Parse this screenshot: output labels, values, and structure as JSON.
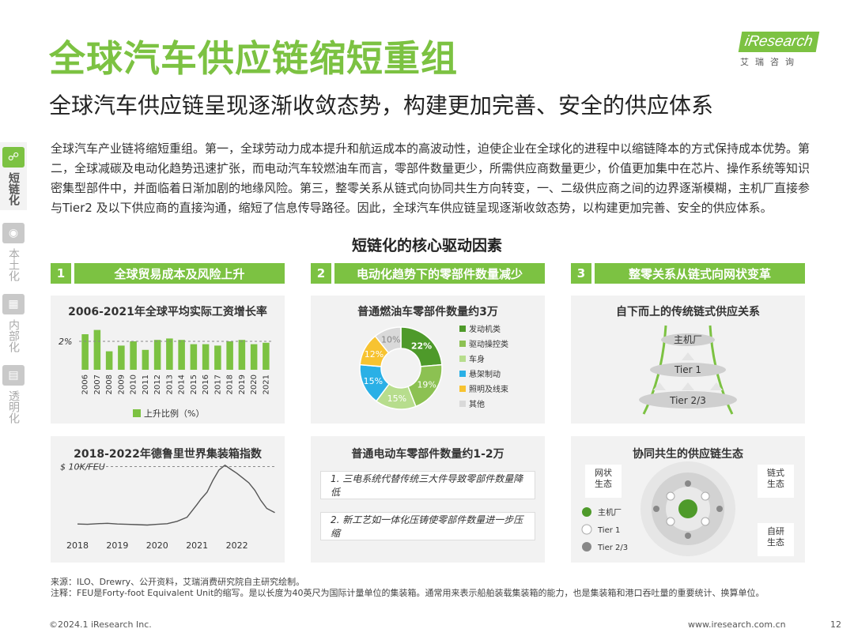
{
  "header": {
    "title": "全球汽车供应链缩短重组",
    "subtitle": "全球汽车供应链呈现逐渐收敛态势，构建更加完善、安全的供应体系",
    "logo_text": "iResearch",
    "logo_sub": "艾瑞咨询"
  },
  "sidebar": {
    "items": [
      {
        "label": "短链化",
        "icon": "link-icon",
        "active": true
      },
      {
        "label": "本土化",
        "icon": "globe-icon",
        "active": false
      },
      {
        "label": "内部化",
        "icon": "network-icon",
        "active": false
      },
      {
        "label": "透明化",
        "icon": "document-icon",
        "active": false
      }
    ]
  },
  "paragraph": "全球汽车产业链将缩短重组。第一，全球劳动力成本提升和航运成本的高波动性，迫使企业在全球化的进程中以缩链降本的方式保持成本优势。第二，全球减碳及电动化趋势迅速扩张，而电动汽车较燃油车而言，零部件数量更少，所需供应商数量更少，价值更加集中在芯片、操作系统等知识密集型部件中，并面临着日渐加剧的地缘风险。第三，整零关系从链式向协同共生方向转变，一、二级供应商之间的边界逐渐模糊，主机厂直接参与Tier2 及以下供应商的直接沟通，缩短了信息传导路径。因此，全球汽车供应链呈现逐渐收敛态势，以构建更加完善、安全的供应体系。",
  "drivers_title": "短链化的核心驱动因素",
  "banners": [
    {
      "num": "1",
      "text": "全球贸易成本及风险上升"
    },
    {
      "num": "2",
      "text": "电动化趋势下的零部件数量减少"
    },
    {
      "num": "3",
      "text": "整零关系从链式向网状变革"
    }
  ],
  "panels": {
    "wage_title": "2006-2021年全球平均实际工资增长率",
    "container_title": "2018-2022年德鲁里世界集装箱指数",
    "ice_title": "普通燃油车零部件数量约3万",
    "ev_title": "普通电动车零部件数量约1-2万",
    "chain_title": "自下而上的传统链式供应关系",
    "eco_title": "协同共生的供应链生态"
  },
  "ev_notes": [
    "1. 三电系统代替传统三大件导致零部件数量降低",
    "2. 新工艺如一体化压铸使零部件数量进一步压缩"
  ],
  "chain_labels": [
    "主机厂",
    "Tier 1",
    "Tier 2/3"
  ],
  "eco": {
    "left_label": "网状\n生态",
    "right_top_label": "链式\n生态",
    "right_bottom_label": "自研\n生态",
    "legend": [
      "主机厂",
      "Tier 1",
      "Tier 2/3"
    ]
  },
  "colors": {
    "brand": "#7cc242",
    "dark_green": "#4e9a2a",
    "mid_green": "#8cc152",
    "light_green": "#b7dd8d",
    "blue": "#2ab0e6",
    "yellow": "#f7c331",
    "gray": "#d9d9d9"
  },
  "chart_data": [
    {
      "type": "bar",
      "title": "2006-2021年全球平均实际工资增长率",
      "categories": [
        "2006",
        "2007",
        "2008",
        "2009",
        "2010",
        "2011",
        "2012",
        "2013",
        "2014",
        "2015",
        "2016",
        "2017",
        "2018",
        "2019",
        "2020",
        "2021"
      ],
      "values": [
        2.5,
        2.8,
        1.3,
        1.7,
        2.0,
        1.4,
        2.1,
        2.2,
        2.1,
        1.8,
        1.8,
        1.7,
        2.0,
        2.1,
        1.8,
        1.9
      ],
      "ylim": [
        0,
        3
      ],
      "reference_line": {
        "value": 2,
        "label": "2%"
      },
      "legend": [
        "上升比例（%）"
      ]
    },
    {
      "type": "line",
      "title": "2018-2022年德鲁里世界集装箱指数",
      "x": [
        2018.0,
        2018.25,
        2018.5,
        2018.75,
        2019.0,
        2019.25,
        2019.5,
        2019.75,
        2020.0,
        2020.25,
        2020.5,
        2020.75,
        2021.0,
        2021.1,
        2021.25,
        2021.4,
        2021.55,
        2021.7,
        2021.85,
        2022.0,
        2022.15,
        2022.3,
        2022.45,
        2022.6,
        2022.75,
        2022.95
      ],
      "y": [
        1500,
        1450,
        1550,
        1600,
        1500,
        1450,
        1400,
        1350,
        1450,
        1550,
        1900,
        2500,
        4400,
        5200,
        6200,
        8000,
        9500,
        10200,
        9600,
        9000,
        8300,
        7600,
        6500,
        5000,
        3800,
        3200
      ],
      "ylim": [
        0,
        11000
      ],
      "reference_line": {
        "value": 10000,
        "label": "$ 10K/FEU"
      },
      "xticks": [
        "2018",
        "2019",
        "2020",
        "2021",
        "2022"
      ]
    },
    {
      "type": "pie",
      "title": "普通燃油车零部件数量约3万",
      "labels": [
        "发动机类",
        "驱动操控类",
        "车身",
        "悬架制动",
        "照明及线束",
        "其他"
      ],
      "values": [
        22,
        19,
        15,
        15,
        12,
        10
      ],
      "legend": [
        "发动机类",
        "驱动操控类",
        "车身",
        "悬架制动",
        "照明及线束",
        "其他"
      ]
    }
  ],
  "source": {
    "line1": "来源：ILO、Drewry、公开资料，艾瑞消费研究院自主研究绘制。",
    "line2": "注释：FEU是Forty-foot Equivalent Unit的缩写。是以长度为40英尺为国际计量单位的集装箱。通常用来表示船舶装载集装箱的能力，也是集装箱和港口吞吐量的重要统计、换算单位。"
  },
  "footer": {
    "left": "©2024.1 iResearch Inc.",
    "right": "www.iresearch.com.cn",
    "page": "12"
  }
}
